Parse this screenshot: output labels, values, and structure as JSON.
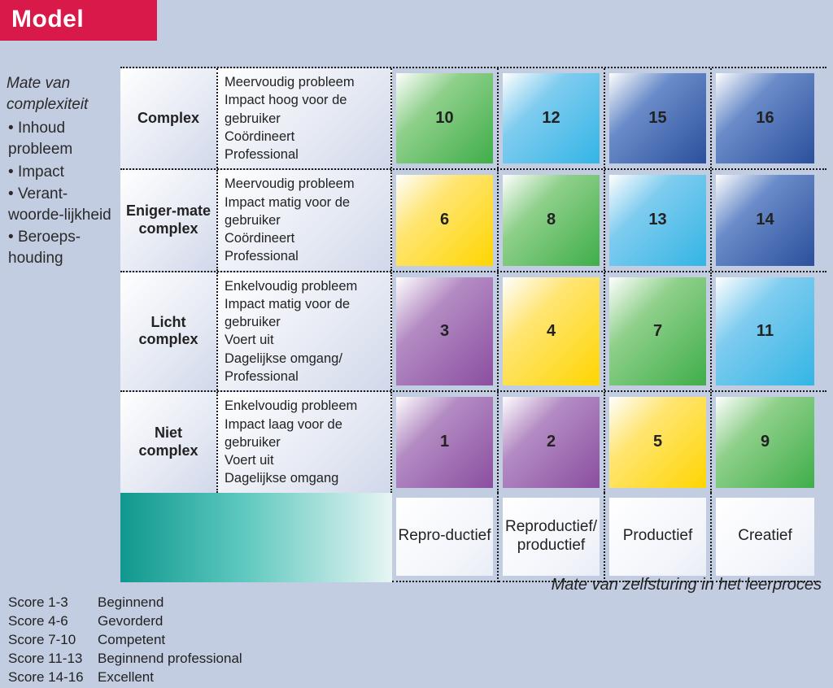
{
  "title": "Model",
  "y_axis": {
    "title": "Mate van complexiteit",
    "bullets": [
      "Inhoud probleem",
      "Impact",
      "Verant-woorde-lijkheid",
      "Beroeps-houding"
    ]
  },
  "x_axis": {
    "title": "Mate van zelfsturing in het leerproces",
    "columns": [
      "Repro-ductief",
      "Reproductief/ productief",
      "Productief",
      "Creatief"
    ]
  },
  "rows": [
    {
      "label": "Complex",
      "desc": "Meervoudig probleem\nImpact hoog voor de gebruiker\nCoördineert\nProfessional",
      "cells": [
        {
          "value": 10,
          "color": "green"
        },
        {
          "value": 12,
          "color": "lblue"
        },
        {
          "value": 15,
          "color": "dblue"
        },
        {
          "value": 16,
          "color": "dblue"
        }
      ]
    },
    {
      "label": "Eniger-mate complex",
      "desc": "Meervoudig probleem\nImpact matig voor de gebruiker\nCoördineert\nProfessional",
      "cells": [
        {
          "value": 6,
          "color": "yellow"
        },
        {
          "value": 8,
          "color": "green"
        },
        {
          "value": 13,
          "color": "lblue"
        },
        {
          "value": 14,
          "color": "dblue"
        }
      ]
    },
    {
      "label": "Licht complex",
      "desc": "Enkelvoudig probleem\nImpact matig voor de gebruiker\nVoert uit\nDagelijkse omgang/ Professional",
      "cells": [
        {
          "value": 3,
          "color": "purple"
        },
        {
          "value": 4,
          "color": "yellow"
        },
        {
          "value": 7,
          "color": "green"
        },
        {
          "value": 11,
          "color": "lblue"
        }
      ]
    },
    {
      "label": "Niet complex",
      "desc": "Enkelvoudig probleem\nImpact laag voor de gebruiker\nVoert uit\nDagelijkse omgang",
      "cells": [
        {
          "value": 1,
          "color": "purple"
        },
        {
          "value": 2,
          "color": "purple"
        },
        {
          "value": 5,
          "color": "yellow"
        },
        {
          "value": 9,
          "color": "green"
        }
      ]
    }
  ],
  "legend": [
    {
      "range": "Score 1-3",
      "label": "Beginnend"
    },
    {
      "range": "Score 4-6",
      "label": "Gevorderd"
    },
    {
      "range": "Score 7-10",
      "label": "Competent"
    },
    {
      "range": "Score 11-13",
      "label": "Beginnend professional"
    },
    {
      "range": "Score 14-16",
      "label": "Excellent"
    }
  ],
  "colors": {
    "purple": {
      "from": "#fefefe",
      "mid": "#b38bc3",
      "to": "#8b4ea0"
    },
    "yellow": {
      "from": "#fefefe",
      "mid": "#ffe573",
      "to": "#ffd500"
    },
    "green": {
      "from": "#fefefe",
      "mid": "#8fd08b",
      "to": "#3fae49"
    },
    "lblue": {
      "from": "#fefefe",
      "mid": "#7fccef",
      "to": "#33b5e5"
    },
    "dblue": {
      "from": "#fefefe",
      "mid": "#6a8cc9",
      "to": "#2b4f9c"
    },
    "banner": "#d8194a",
    "page_bg": "#c3cde1",
    "teal_from": "#0f988e",
    "teal_to": "#e8f5f3"
  },
  "typography": {
    "title_fontsize_pt": 23,
    "row_label_fontsize_pt": 14,
    "cell_number_fontsize_pt": 15,
    "body_fontsize_pt": 12
  }
}
